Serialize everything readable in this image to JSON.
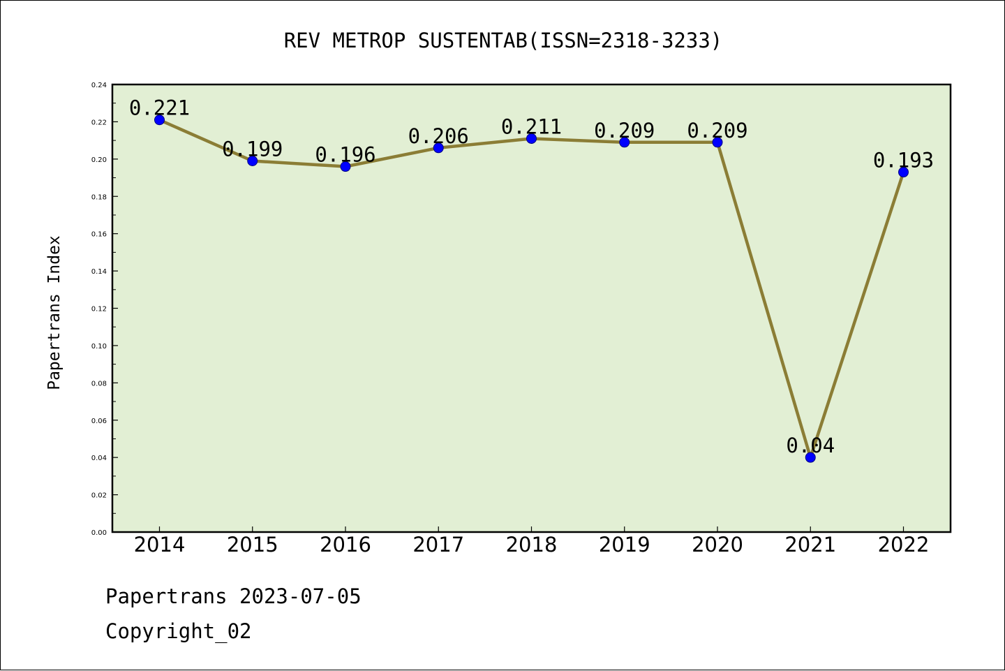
{
  "chart_data": {
    "type": "line",
    "title": "REV METROP SUSTENTAB(ISSN=2318-3233)",
    "xlabel": "",
    "ylabel": "Papertrans Index",
    "categories": [
      "2014",
      "2015",
      "2016",
      "2017",
      "2018",
      "2019",
      "2020",
      "2021",
      "2022"
    ],
    "series": [
      {
        "values": [
          0.221,
          0.199,
          0.196,
          0.206,
          0.211,
          0.209,
          0.209,
          0.04,
          0.193
        ],
        "data_labels": [
          "0.221",
          "0.199",
          "0.196",
          "0.206",
          "0.211",
          "0.209",
          "0.209",
          "0.04",
          "0.193"
        ]
      }
    ],
    "ylim": [
      0,
      0.24
    ],
    "yticks": [
      "0.00",
      "0.02",
      "0.04",
      "0.06",
      "0.08",
      "0.10",
      "0.12",
      "0.14",
      "0.16",
      "0.18",
      "0.20",
      "0.22",
      "0.24"
    ],
    "grid": false,
    "legend": "none",
    "colors": {
      "plot_background": "#e2efd4",
      "line": "#8b7d35",
      "marker": "#0000ff",
      "marker_edge": "#000080"
    }
  },
  "footer": {
    "line1": "Papertrans 2023-07-05",
    "line2": "Copyright_02"
  }
}
